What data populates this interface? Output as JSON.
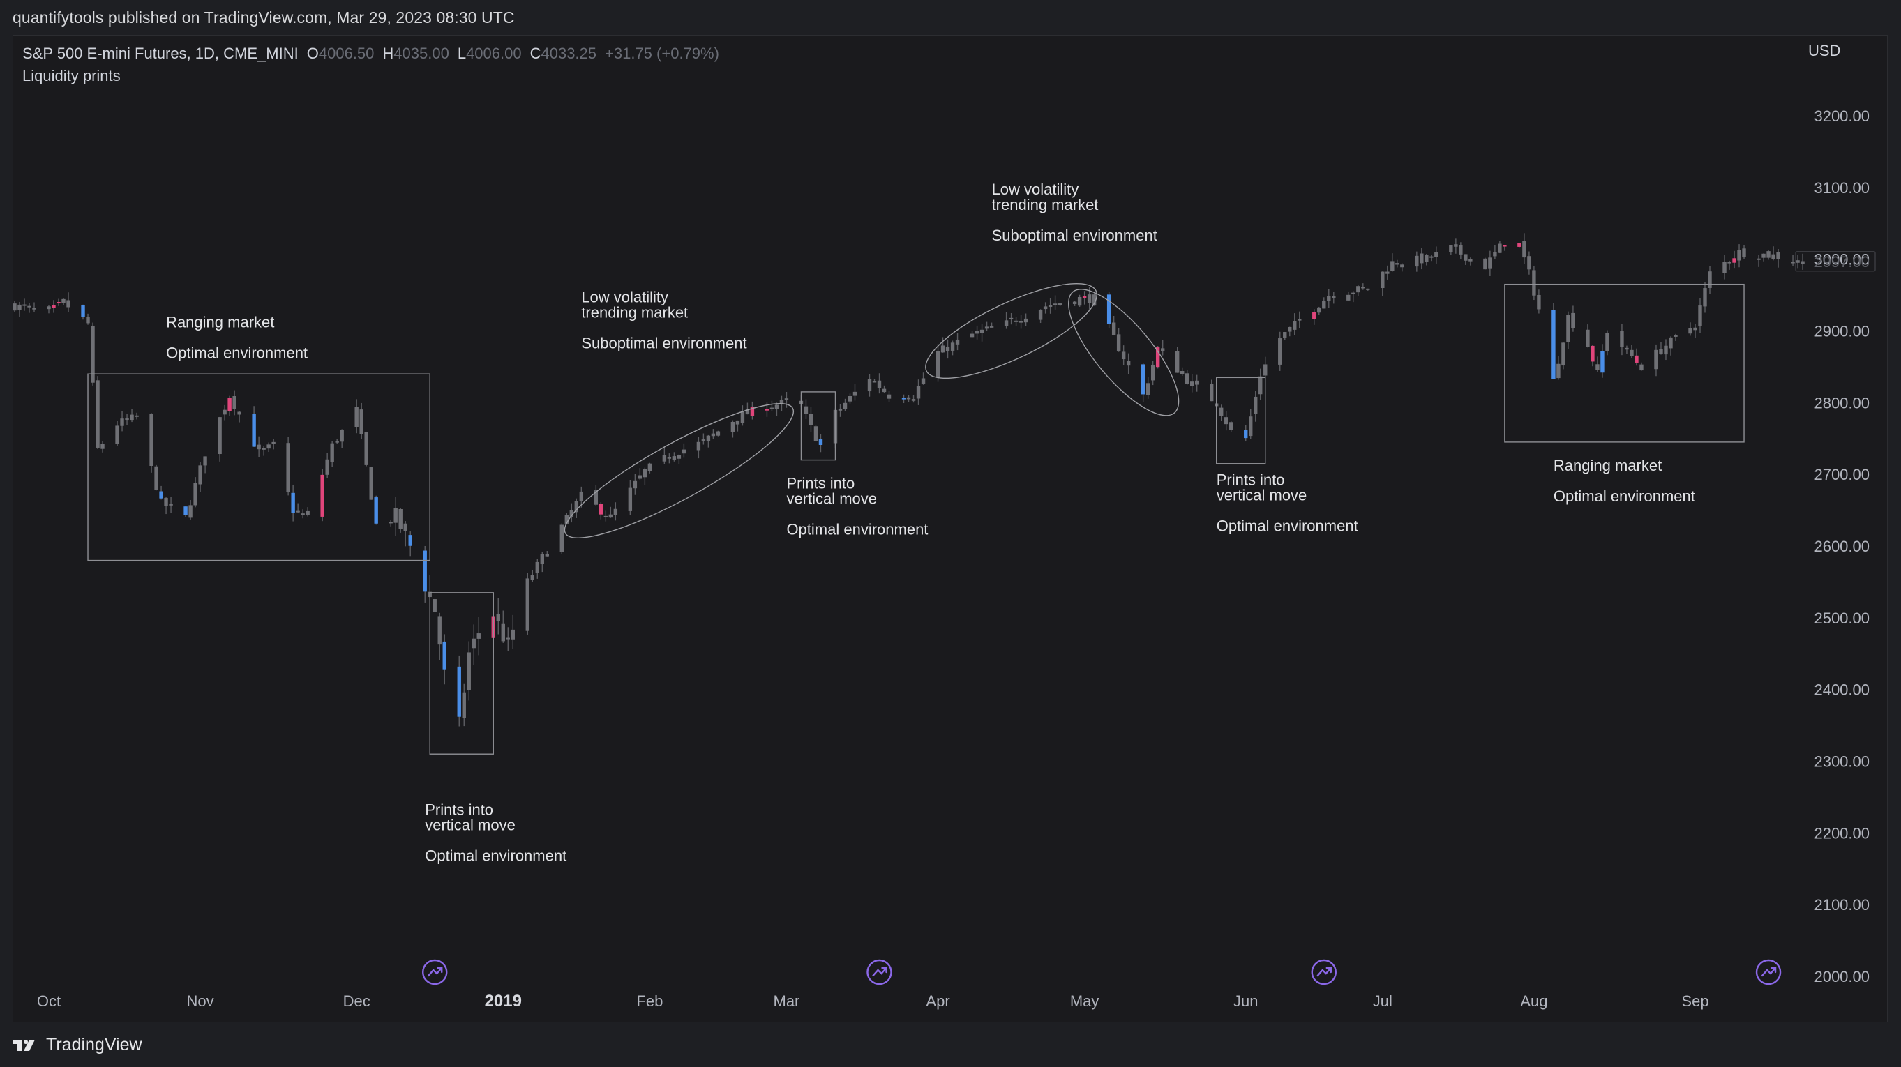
{
  "header": {
    "publish_line": "quantifytools published on TradingView.com, Mar 29, 2023 08:30 UTC"
  },
  "legend": {
    "symbol": "S&P 500 E-mini Futures, 1D, CME_MINI",
    "open_label": "O",
    "open": "4006.50",
    "high_label": "H",
    "high": "4035.00",
    "low_label": "L",
    "low": "4006.00",
    "close_label": "C",
    "close": "4033.25",
    "change": "+31.75 (+0.79%)",
    "indicator": "Liquidity prints",
    "currency": "USD"
  },
  "footer": {
    "brand": "TradingView",
    "logo_icon": "tradingview-logo-icon"
  },
  "colors": {
    "background": "#1a1a1d",
    "candle_neutral": "#6f7075",
    "candle_wick": "#5d5e63",
    "candle_pink": "#e0457b",
    "candle_blue": "#4a8ee8",
    "annotation": "#b5b6ba",
    "axis_text": "#b2b5be",
    "event_marker": "#8b68e8"
  },
  "chart_data": {
    "type": "candlestick",
    "y_ticks": [
      "2000.00",
      "2100.00",
      "2200.00",
      "2300.00",
      "2400.00",
      "2500.00",
      "2600.00",
      "2700.00",
      "2800.00",
      "2900.00",
      "3000.00",
      "3100.00",
      "3200.00"
    ],
    "ylim": [
      1985,
      3280
    ],
    "last_price": "2997.00",
    "x_ticks": [
      {
        "label": "Oct",
        "date": "2018-10-01"
      },
      {
        "label": "Nov",
        "date": "2018-11-01"
      },
      {
        "label": "Dec",
        "date": "2018-12-03"
      },
      {
        "label": "2019",
        "date": "2019-01-02"
      },
      {
        "label": "Feb",
        "date": "2019-02-01"
      },
      {
        "label": "Mar",
        "date": "2019-03-01"
      },
      {
        "label": "Apr",
        "date": "2019-04-01"
      },
      {
        "label": "May",
        "date": "2019-05-01"
      },
      {
        "label": "Jun",
        "date": "2019-06-03"
      },
      {
        "label": "Jul",
        "date": "2019-07-01"
      },
      {
        "label": "Aug",
        "date": "2019-08-01"
      },
      {
        "label": "Sep",
        "date": "2019-09-03"
      }
    ],
    "event_marker_dates": [
      "2018-12-19",
      "2019-03-20",
      "2019-06-19",
      "2019-09-18"
    ],
    "price_path": [
      [
        "2018-09-24",
        2935
      ],
      [
        "2018-10-01",
        2925
      ],
      [
        "2018-10-04",
        2940
      ],
      [
        "2018-10-09",
        2910
      ],
      [
        "2018-10-11",
        2735
      ],
      [
        "2018-10-15",
        2770
      ],
      [
        "2018-10-19",
        2780
      ],
      [
        "2018-10-24",
        2660
      ],
      [
        "2018-10-29",
        2640
      ],
      [
        "2018-11-02",
        2730
      ],
      [
        "2018-11-07",
        2810
      ],
      [
        "2018-11-13",
        2730
      ],
      [
        "2018-11-16",
        2740
      ],
      [
        "2018-11-20",
        2650
      ],
      [
        "2018-11-23",
        2640
      ],
      [
        "2018-11-28",
        2740
      ],
      [
        "2018-12-03",
        2790
      ],
      [
        "2018-12-07",
        2630
      ],
      [
        "2018-12-11",
        2640
      ],
      [
        "2018-12-14",
        2600
      ],
      [
        "2018-12-17",
        2545
      ],
      [
        "2018-12-19",
        2510
      ],
      [
        "2018-12-21",
        2420
      ],
      [
        "2018-12-24",
        2350
      ],
      [
        "2018-12-26",
        2450
      ],
      [
        "2018-12-28",
        2480
      ],
      [
        "2018-12-31",
        2505
      ],
      [
        "2019-01-03",
        2460
      ],
      [
        "2019-01-07",
        2550
      ],
      [
        "2019-01-11",
        2595
      ],
      [
        "2019-01-18",
        2670
      ],
      [
        "2019-01-24",
        2640
      ],
      [
        "2019-01-31",
        2705
      ],
      [
        "2019-02-06",
        2730
      ],
      [
        "2019-02-12",
        2745
      ],
      [
        "2019-02-19",
        2780
      ],
      [
        "2019-02-25",
        2795
      ],
      [
        "2019-03-01",
        2800
      ],
      [
        "2019-03-04",
        2795
      ],
      [
        "2019-03-06",
        2765
      ],
      [
        "2019-03-08",
        2740
      ],
      [
        "2019-03-11",
        2785
      ],
      [
        "2019-03-18",
        2835
      ],
      [
        "2019-03-22",
        2810
      ],
      [
        "2019-03-27",
        2810
      ],
      [
        "2019-04-01",
        2870
      ],
      [
        "2019-04-08",
        2895
      ],
      [
        "2019-04-15",
        2910
      ],
      [
        "2019-04-23",
        2935
      ],
      [
        "2019-04-30",
        2945
      ],
      [
        "2019-05-03",
        2945
      ],
      [
        "2019-05-07",
        2890
      ],
      [
        "2019-05-13",
        2810
      ],
      [
        "2019-05-16",
        2875
      ],
      [
        "2019-05-23",
        2825
      ],
      [
        "2019-05-28",
        2800
      ],
      [
        "2019-05-31",
        2760
      ],
      [
        "2019-06-03",
        2750
      ],
      [
        "2019-06-06",
        2840
      ],
      [
        "2019-06-10",
        2890
      ],
      [
        "2019-06-20",
        2950
      ],
      [
        "2019-06-28",
        2960
      ],
      [
        "2019-07-03",
        2995
      ],
      [
        "2019-07-10",
        3000
      ],
      [
        "2019-07-15",
        3015
      ],
      [
        "2019-07-22",
        2990
      ],
      [
        "2019-07-26",
        3025
      ],
      [
        "2019-07-29",
        3020
      ],
      [
        "2019-07-31",
        2980
      ],
      [
        "2019-08-02",
        2930
      ],
      [
        "2019-08-05",
        2830
      ],
      [
        "2019-08-08",
        2920
      ],
      [
        "2019-08-12",
        2880
      ],
      [
        "2019-08-14",
        2840
      ],
      [
        "2019-08-16",
        2900
      ],
      [
        "2019-08-23",
        2850
      ],
      [
        "2019-08-28",
        2880
      ],
      [
        "2019-09-03",
        2910
      ],
      [
        "2019-09-06",
        2980
      ],
      [
        "2019-09-12",
        3010
      ],
      [
        "2019-09-19",
        3005
      ],
      [
        "2019-09-25",
        2995
      ]
    ],
    "pink_candle_dates": [
      "2018-10-02",
      "2018-10-03",
      "2018-11-07",
      "2018-11-26",
      "2018-12-31",
      "2019-01-22",
      "2019-02-22",
      "2019-02-25",
      "2019-05-01",
      "2019-05-16",
      "2019-06-17",
      "2019-07-26",
      "2019-07-29",
      "2019-08-13",
      "2019-08-22",
      "2019-09-11"
    ],
    "blue_candle_dates": [
      "2018-10-08",
      "2018-10-24",
      "2018-10-29",
      "2018-11-12",
      "2018-11-20",
      "2018-12-07",
      "2018-12-14",
      "2018-12-17",
      "2018-12-21",
      "2018-12-24",
      "2019-03-08",
      "2019-03-25",
      "2019-05-06",
      "2019-05-13",
      "2019-06-03",
      "2019-08-05",
      "2019-08-15"
    ],
    "annotations": [
      {
        "shape": "box",
        "from": [
          "2018-10-09",
          2840
        ],
        "to": [
          "2018-12-18",
          2580
        ],
        "title": "Ranging market",
        "subtitle": "Optimal environment",
        "label_at": [
          "2018-10-25",
          2905
        ]
      },
      {
        "shape": "box",
        "from": [
          "2018-12-18",
          2535
        ],
        "to": [
          "2018-12-31",
          2310
        ],
        "title": "Prints into\nvertical move",
        "subtitle": "Optimal environment",
        "label_at": [
          "2018-12-17",
          2225
        ]
      },
      {
        "shape": "ellipse",
        "from": [
          "2019-01-18",
          2630
        ],
        "to": [
          "2019-02-27",
          2780
        ],
        "title": "Low volatility\ntrending market",
        "subtitle": "Suboptimal environment",
        "label_at": [
          "2019-01-18",
          2940
        ]
      },
      {
        "shape": "box",
        "from": [
          "2019-03-04",
          2815
        ],
        "to": [
          "2019-03-11",
          2720
        ],
        "title": "Prints into\nvertical move",
        "subtitle": "Optimal environment",
        "label_at": [
          "2019-03-01",
          2680
        ]
      },
      {
        "shape": "ellipse",
        "from": [
          "2019-04-02",
          2855
        ],
        "to": [
          "2019-04-30",
          2945
        ],
        "title": "Low volatility\ntrending market",
        "subtitle": "Suboptimal environment",
        "label_at": [
          "2019-04-12",
          3090
        ]
      },
      {
        "shape": "ellipse",
        "from": [
          "2019-05-01",
          2935
        ],
        "to": [
          "2019-05-17",
          2805
        ],
        "title": "",
        "subtitle": "",
        "label_at": null
      },
      {
        "shape": "box",
        "from": [
          "2019-05-28",
          2835
        ],
        "to": [
          "2019-06-07",
          2715
        ],
        "title": "Prints into\nvertical move",
        "subtitle": "Optimal environment",
        "label_at": [
          "2019-05-28",
          2685
        ]
      },
      {
        "shape": "box",
        "from": [
          "2019-07-26",
          2965
        ],
        "to": [
          "2019-09-13",
          2745
        ],
        "title": "Ranging market",
        "subtitle": "Optimal environment",
        "label_at": [
          "2019-08-05",
          2705
        ]
      }
    ]
  }
}
